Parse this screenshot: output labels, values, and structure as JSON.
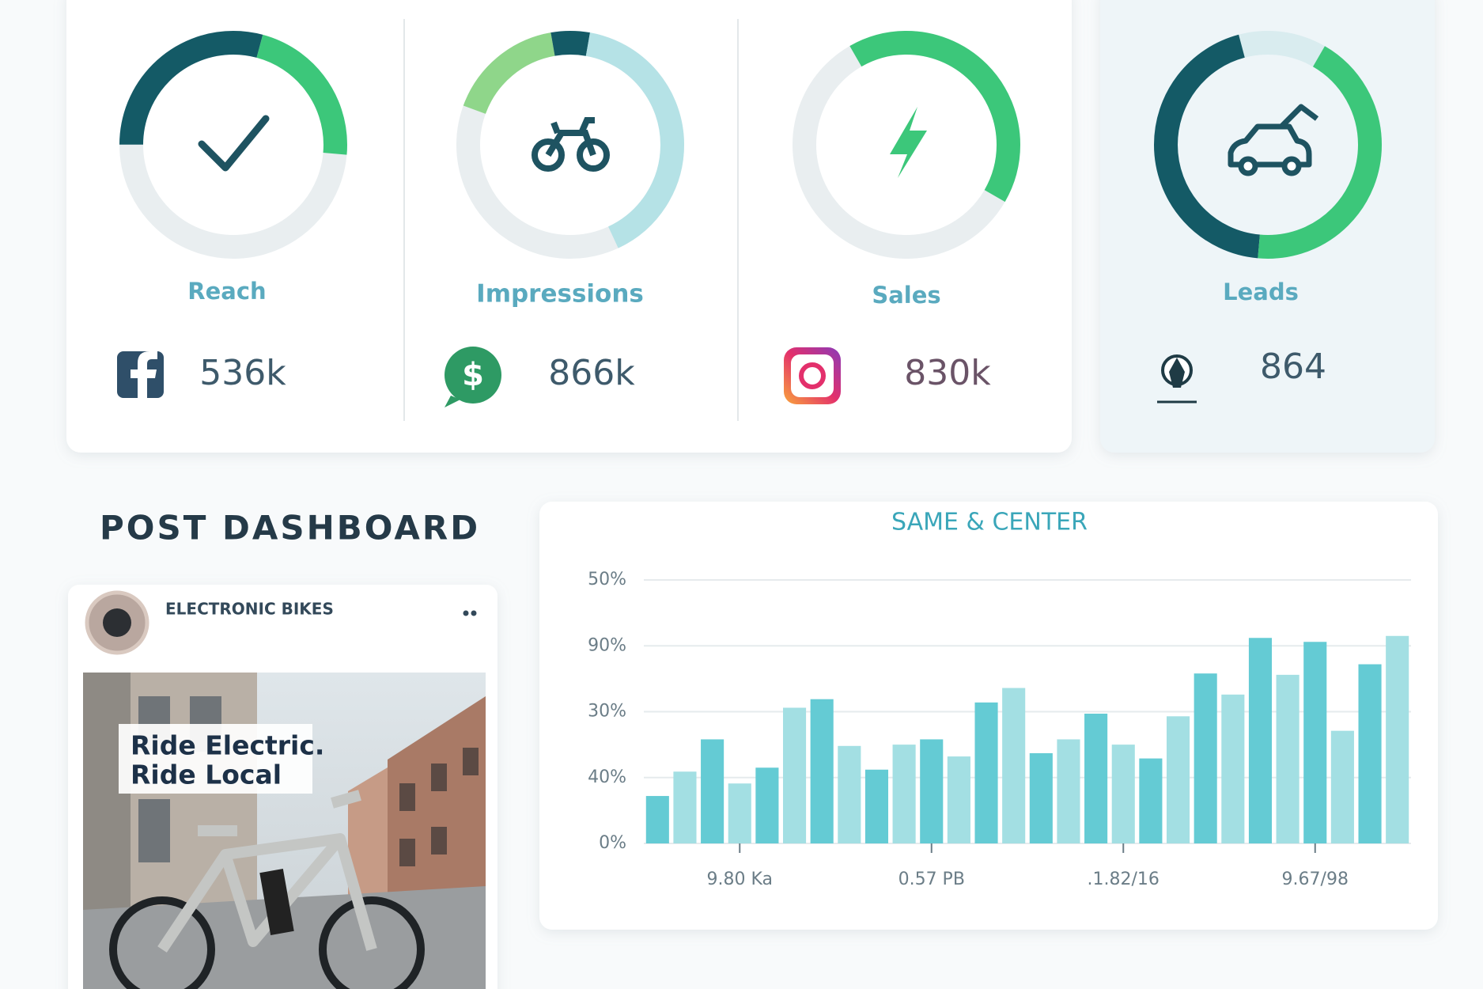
{
  "kpis": [
    {
      "label": "Reach",
      "value": "536k"
    },
    {
      "label": "Impressions",
      "value": "866k"
    },
    {
      "label": "Sales",
      "value": "830k"
    },
    {
      "label": "Leads",
      "value": "864"
    }
  ],
  "post_dashboard": {
    "title": "POST DASHBOARD",
    "account": "ELECTRONIC BIKES",
    "image_text": [
      "Ride Electric.",
      "Ride Local"
    ]
  },
  "chart_data": {
    "type": "bar",
    "title": "SAME & CENTER",
    "categories": [
      null,
      null,
      null,
      "9.80 Ka",
      null,
      null,
      null,
      null,
      null,
      null,
      "0.57 PB",
      null,
      null,
      null,
      null,
      null,
      null,
      ".1.82/16",
      null,
      null,
      null,
      null,
      null,
      null,
      "9.67/98",
      null,
      null,
      null
    ],
    "values": [
      0.72,
      1.09,
      1.58,
      0.91,
      1.15,
      2.06,
      2.19,
      1.48,
      1.12,
      1.5,
      1.58,
      1.32,
      2.14,
      2.36,
      1.37,
      1.58,
      1.97,
      1.5,
      1.29,
      1.93,
      2.58,
      2.26,
      3.12,
      2.56,
      3.06,
      1.71,
      2.72,
      3.15
    ],
    "colors": [
      "#64cbd4",
      "#a3dfe3"
    ],
    "ylim": [
      0,
      4
    ],
    "yticks": [
      0,
      1,
      2,
      3,
      4
    ],
    "ytick_labels": [
      "0%",
      "40%",
      "30%",
      "90%",
      "50%"
    ],
    "grid": true
  }
}
